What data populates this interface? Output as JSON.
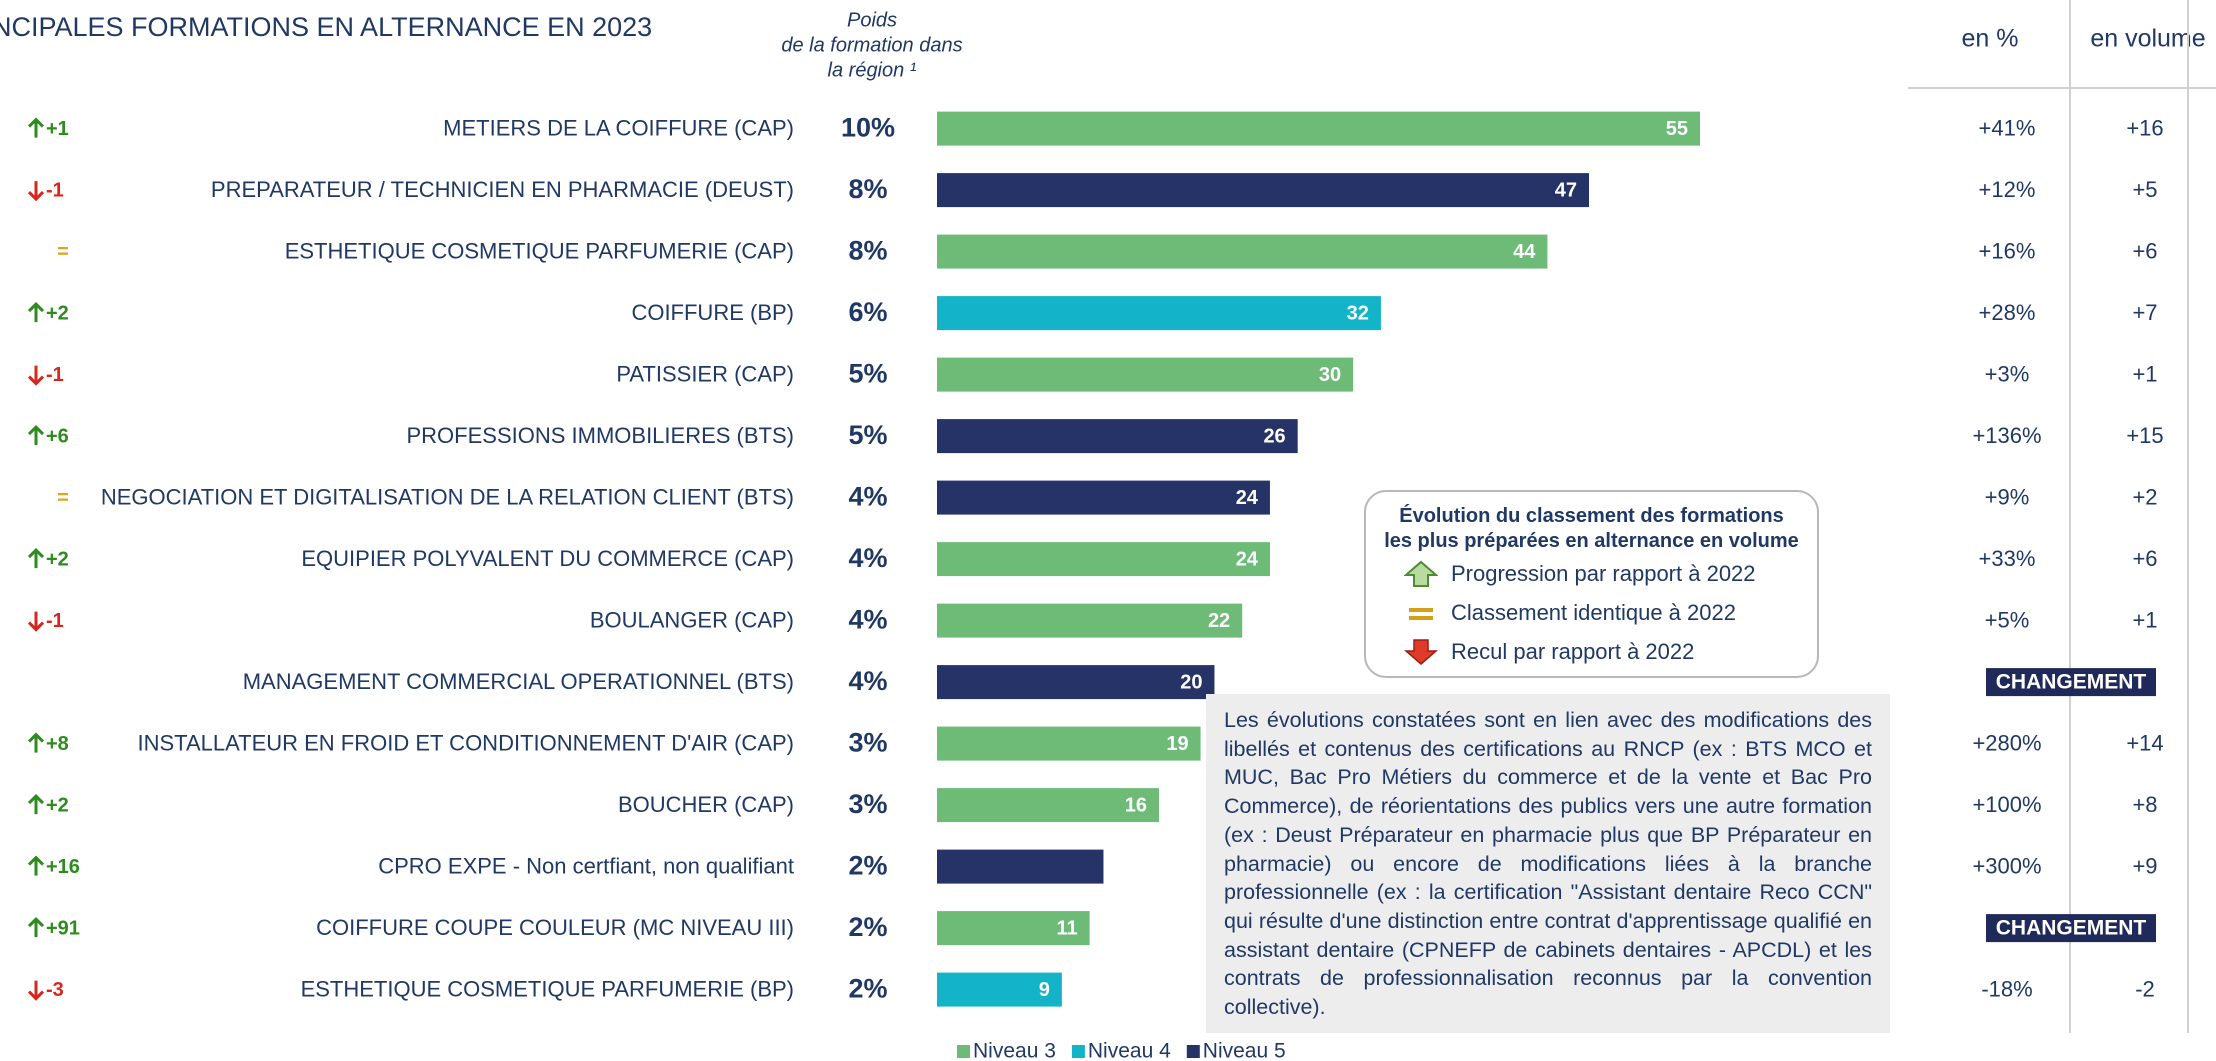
{
  "chart_data": {
    "type": "bar",
    "title": "NCIPALES FORMATIONS EN ALTERNANCE EN 2023",
    "weight_header": [
      "Poids",
      "de la formation dans",
      "la région ¹"
    ],
    "categories": [
      "METIERS DE LA COIFFURE (CAP)",
      "PREPARATEUR / TECHNICIEN EN PHARMACIE (DEUST)",
      "ESTHETIQUE COSMETIQUE PARFUMERIE (CAP)",
      "COIFFURE (BP)",
      "PATISSIER (CAP)",
      "PROFESSIONS IMMOBILIERES (BTS)",
      "NEGOCIATION ET DIGITALISATION DE LA RELATION CLIENT (BTS)",
      "EQUIPIER POLYVALENT DU COMMERCE (CAP)",
      "BOULANGER (CAP)",
      "MANAGEMENT COMMERCIAL OPERATIONNEL (BTS)",
      "INSTALLATEUR EN FROID ET CONDITIONNEMENT D'AIR (CAP)",
      "BOUCHER (CAP)",
      "CPRO EXPE - Non certfiant, non qualifiant",
      "COIFFURE COUPE COULEUR (MC NIVEAU III)",
      "ESTHETIQUE COSMETIQUE PARFUMERIE (BP)"
    ],
    "values": [
      55,
      47,
      44,
      32,
      30,
      26,
      24,
      24,
      22,
      20,
      19,
      16,
      12,
      11,
      9
    ],
    "value_labels": [
      55,
      47,
      44,
      32,
      30,
      26,
      24,
      24,
      22,
      20,
      19,
      16,
      null,
      11,
      9
    ],
    "levels": [
      0,
      2,
      0,
      1,
      0,
      2,
      2,
      0,
      0,
      2,
      0,
      0,
      2,
      0,
      1
    ],
    "legend": [
      {
        "name": "Niveau 3",
        "color": "#6dbb77"
      },
      {
        "name": "Niveau 4",
        "color": "#14b4c8"
      },
      {
        "name": "Niveau 5",
        "color": "#253366"
      }
    ],
    "weights": [
      "10%",
      "8%",
      "8%",
      "6%",
      "5%",
      "5%",
      "4%",
      "4%",
      "4%",
      "4%",
      "3%",
      "3%",
      "2%",
      "2%",
      "2%"
    ],
    "rank_direction": [
      "up",
      "down",
      "same",
      "up",
      "down",
      "up",
      "same",
      "up",
      "down",
      null,
      "up",
      "up",
      "up",
      "up",
      "down"
    ],
    "rank_change": [
      "+1",
      "-1",
      "=",
      "+2",
      "-1",
      "+6",
      "=",
      "+2",
      "-1",
      null,
      "+8",
      "+2",
      "+16",
      "+91",
      "-3"
    ],
    "pct_header": "en %",
    "vol_header": "en volume",
    "evol_pct": [
      "+41%",
      "+12%",
      "+16%",
      "+28%",
      "+3%",
      "+136%",
      "+9%",
      "+33%",
      "+5%",
      null,
      "+280%",
      "+100%",
      "+300%",
      null,
      "-18%"
    ],
    "evol_vol": [
      "+16",
      "+5",
      "+6",
      "+7",
      "+1",
      "+15",
      "+2",
      "+6",
      "+1",
      null,
      "+14",
      "+8",
      "+9",
      null,
      "-2"
    ],
    "change_label": "CHANGEMENT",
    "rank_legend": {
      "title": [
        "Évolution du classement des formations",
        "les plus préparées en alternance en volume"
      ],
      "items": [
        "Progression par rapport à 2022",
        "Classement identique à 2022",
        "Recul par rapport à 2022"
      ]
    },
    "note": "Les évolutions constatées sont en lien avec des modifications des libellés et contenus des certifications au RNCP (ex : BTS MCO et MUC, Bac Pro Métiers du commerce et de la vente et Bac Pro Commerce), de réorientations des publics vers une autre formation (ex : Deust Préparateur en pharmacie plus que BP Préparateur en pharmacie) ou encore de modifications liées à la branche professionnelle (ex : la certification \"Assistant dentaire Reco CCN\" qui résulte d'une distinction entre contrat d'apprentissage qualifié en assistant dentaire (CPNEFP de cabinets dentaires - APCDL) et les contrats de professionnalisation reconnus par la convention collective)."
  }
}
